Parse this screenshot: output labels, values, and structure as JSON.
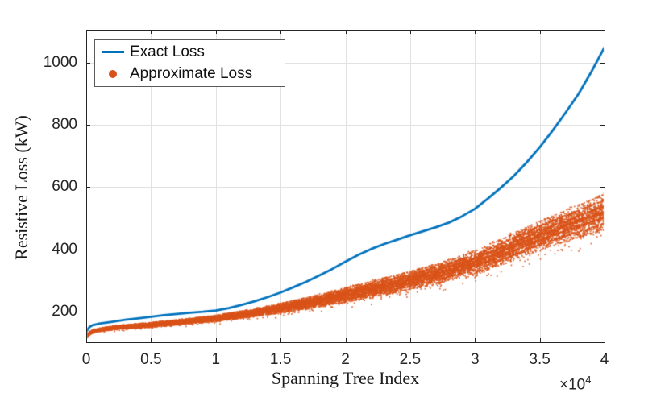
{
  "figure": {
    "background": "#ffffff",
    "axes_color": "#262626",
    "grid_color": "#e2e2e2",
    "tick_label_color": "#262626"
  },
  "chart_data": {
    "type": "line+scatter",
    "title": "",
    "xlabel": "Spanning Tree Index",
    "ylabel": "Resistive Loss (kW)",
    "x_axis_multiplier": {
      "base": "×10",
      "exponent": "4"
    },
    "xlim": [
      0,
      40000
    ],
    "ylim": [
      101,
      1106
    ],
    "grid": true,
    "x_ticks": {
      "values": [
        0,
        5000,
        10000,
        15000,
        20000,
        25000,
        30000,
        35000,
        40000
      ],
      "labels": [
        "0",
        "0.5",
        "1",
        "1.5",
        "2",
        "2.5",
        "3",
        "3.5",
        "4"
      ]
    },
    "y_ticks": {
      "values": [
        200,
        400,
        600,
        800,
        1000
      ],
      "labels": [
        "200",
        "400",
        "600",
        "800",
        "1000"
      ]
    },
    "legend": {
      "position": "top-left",
      "entries": [
        {
          "label": "Exact Loss",
          "color": "#0072BD",
          "marker": "line"
        },
        {
          "label": "Approximate Loss",
          "color": "#D95319",
          "marker": "dot"
        }
      ]
    },
    "series": [
      {
        "name": "Exact Loss",
        "type": "line",
        "color": "#0072BD",
        "line_width": 2.8,
        "points": [
          [
            0,
            133
          ],
          [
            100,
            142
          ],
          [
            250,
            150
          ],
          [
            500,
            156
          ],
          [
            1000,
            161
          ],
          [
            2000,
            167
          ],
          [
            3000,
            173
          ],
          [
            4000,
            178
          ],
          [
            5000,
            183
          ],
          [
            6000,
            188
          ],
          [
            7000,
            192
          ],
          [
            8000,
            196
          ],
          [
            9000,
            199
          ],
          [
            10000,
            203
          ],
          [
            11000,
            211
          ],
          [
            12000,
            221
          ],
          [
            13000,
            233
          ],
          [
            14000,
            246
          ],
          [
            15000,
            261
          ],
          [
            16000,
            278
          ],
          [
            17000,
            296
          ],
          [
            18000,
            316
          ],
          [
            19000,
            337
          ],
          [
            20000,
            360
          ],
          [
            21000,
            382
          ],
          [
            22000,
            401
          ],
          [
            23000,
            417
          ],
          [
            24000,
            431
          ],
          [
            25000,
            445
          ],
          [
            26000,
            458
          ],
          [
            27000,
            471
          ],
          [
            28000,
            486
          ],
          [
            29000,
            506
          ],
          [
            30000,
            530
          ],
          [
            31000,
            563
          ],
          [
            32000,
            598
          ],
          [
            33000,
            636
          ],
          [
            34000,
            680
          ],
          [
            35000,
            728
          ],
          [
            36000,
            782
          ],
          [
            37000,
            840
          ],
          [
            38000,
            900
          ],
          [
            39000,
            972
          ],
          [
            40000,
            1050
          ]
        ]
      },
      {
        "name": "Approximate Loss",
        "type": "scatter",
        "color": "#D95319",
        "marker": "dot",
        "marker_size": 1.7,
        "approx_point_count": 17000,
        "seed": 1337,
        "band": {
          "x": [
            0,
            300,
            600,
            1000,
            2000,
            3000,
            5000,
            7500,
            10000,
            12500,
            15000,
            17500,
            20000,
            22500,
            25000,
            27500,
            30000,
            32500,
            35000,
            37500,
            40000
          ],
          "center": [
            118,
            132,
            137,
            141,
            147,
            151,
            157,
            167,
            178,
            193,
            211,
            231,
            253,
            276,
            300,
            327,
            358,
            400,
            445,
            483,
            520
          ],
          "halfwidth": [
            6,
            6,
            6,
            6,
            7,
            7,
            8,
            9,
            11,
            13,
            16,
            20,
            25,
            29,
            31,
            35,
            40,
            45,
            50,
            56,
            62
          ]
        }
      }
    ]
  }
}
